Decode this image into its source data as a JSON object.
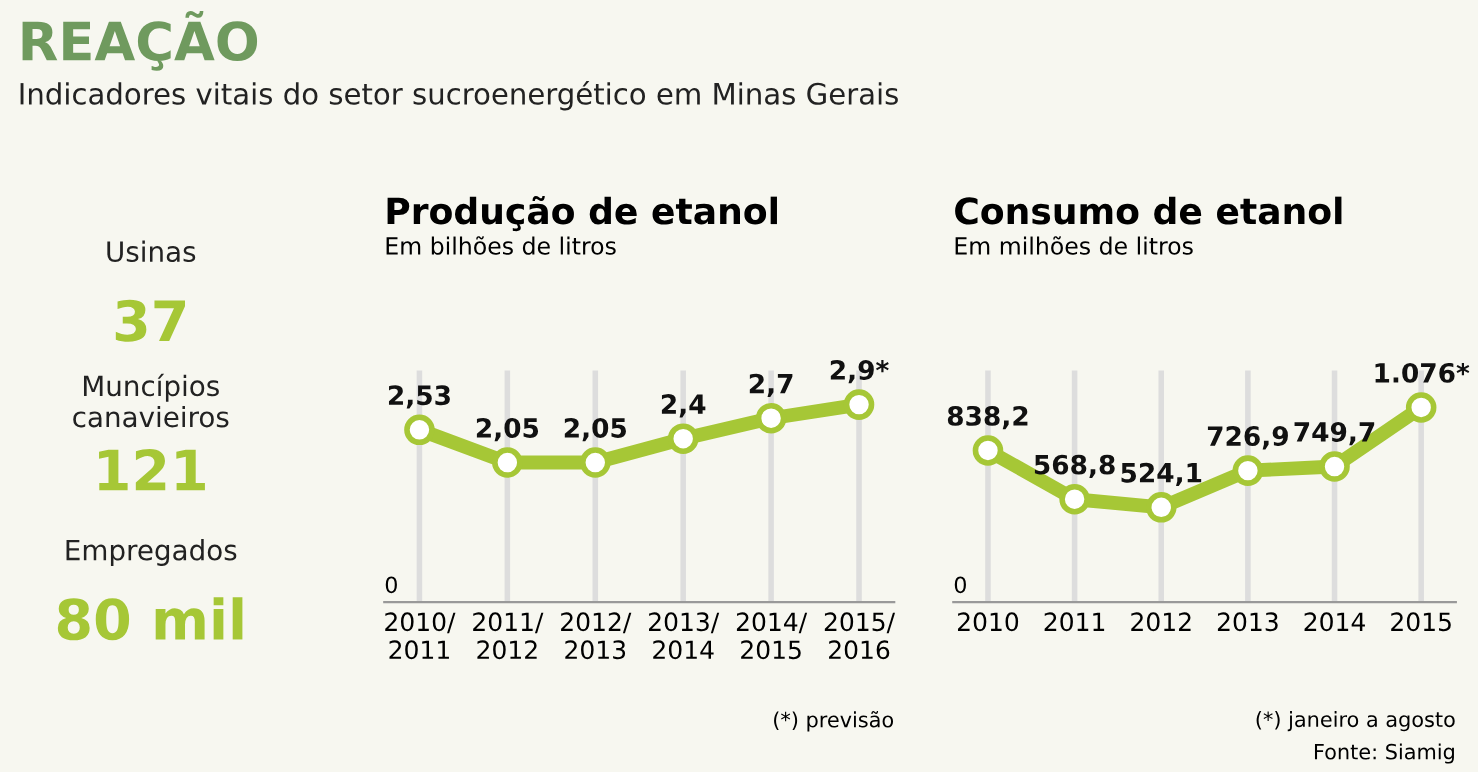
{
  "chart_data": [
    {
      "type": "other",
      "title": "REAÇÃO",
      "subtitle": "Indicadores vitais do setor sucroenergético em Minas Gerais",
      "annotations": [
        "Usinas",
        "37",
        "Muncípios\ncanavieiros",
        "121",
        "Empregados",
        "80 mil"
      ]
    },
    {
      "type": "line",
      "title": "Produção de etanol",
      "subtitle": "Em bilhões de litros",
      "categories": [
        "2010/\n2011",
        "2011/\n2012",
        "2012/\n2013",
        "2013/\n2014",
        "2014/\n2015",
        "2015/\n2016"
      ],
      "series": [
        {
          "color": "#a6c736",
          "values": [
            2.53,
            2.05,
            2.05,
            2.4,
            2.7,
            2.9
          ],
          "value_labels": [
            "2,53",
            "2,05",
            "2,05",
            "2,4",
            "2,7",
            "2,9*"
          ]
        }
      ],
      "ylim": [
        0,
        3.4
      ],
      "grid": "x",
      "marker": "circle",
      "legend": false,
      "annotations": [
        "0",
        "(*) previsão"
      ]
    },
    {
      "type": "line",
      "title": "Consumo de etanol",
      "subtitle": "Em milhões de litros",
      "categories": [
        "2010",
        "2011",
        "2012",
        "2013",
        "2014",
        "2015"
      ],
      "series": [
        {
          "color": "#a6c736",
          "values": [
            838.2,
            568.8,
            524.1,
            726.9,
            749.7,
            1076
          ],
          "value_labels": [
            "838,2",
            "568,8",
            "524,1",
            "726,9",
            "749,7",
            "1.076*"
          ]
        }
      ],
      "ylim": [
        0,
        1280
      ],
      "grid": "x",
      "marker": "circle",
      "legend": false,
      "annotations": [
        "0",
        "(*) janeiro a agosto",
        "Fonte: Siamig"
      ]
    }
  ]
}
